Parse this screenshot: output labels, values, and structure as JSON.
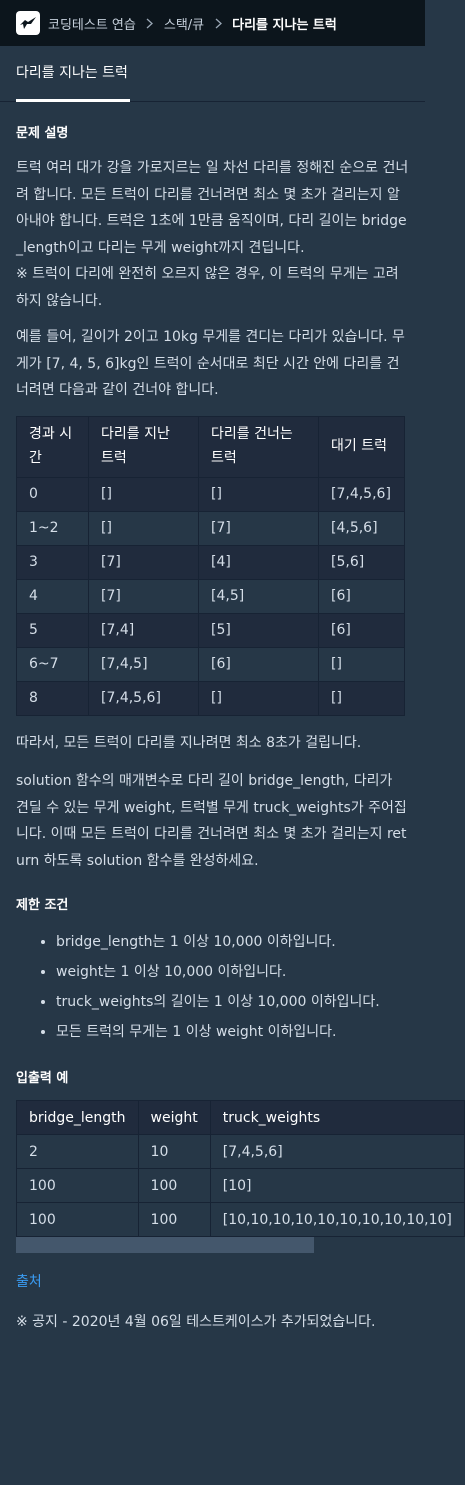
{
  "breadcrumb": {
    "items": [
      "코딩테스트 연습",
      "스택/큐"
    ],
    "current": "다리를 지나는 트럭"
  },
  "tab": {
    "label": "다리를 지나는 트럭"
  },
  "sections": {
    "description_title": "문제 설명",
    "limits_title": "제한 조건",
    "io_title": "입출력 예"
  },
  "description": {
    "p1": "트럭 여러 대가 강을 가로지르는 일 차선 다리를 정해진 순으로 건너려 합니다. 모든 트럭이 다리를 건너려면 최소 몇 초가 걸리는지 알아내야 합니다. 트럭은 1초에 1만큼 움직이며, 다리 길이는 bridge_length이고 다리는 무게 weight까지 견딥니다.",
    "p1_note": "※ 트럭이 다리에 완전히 오르지 않은 경우, 이 트럭의 무게는 고려하지 않습니다.",
    "p2": "예를 들어, 길이가 2이고 10kg 무게를 견디는 다리가 있습니다. 무게가 [7, 4, 5, 6]kg인 트럭이 순서대로 최단 시간 안에 다리를 건너려면 다음과 같이 건너야 합니다.",
    "p3": "따라서, 모든 트럭이 다리를 지나려면 최소 8초가 걸립니다.",
    "p4": "solution 함수의 매개변수로 다리 길이 bridge_length, 다리가 견딜 수 있는 무게 weight, 트럭별 무게 truck_weights가 주어집니다. 이때 모든 트럭이 다리를 건너려면 최소 몇 초가 걸리는지 return 하도록 solution 함수를 완성하세요."
  },
  "sim_table": {
    "headers": [
      "경과 시간",
      "다리를 지난 트럭",
      "다리를 건너는 트럭",
      "대기 트럭"
    ],
    "rows": [
      [
        "0",
        "[]",
        "[]",
        "[7,4,5,6]"
      ],
      [
        "1~2",
        "[]",
        "[7]",
        "[4,5,6]"
      ],
      [
        "3",
        "[7]",
        "[4]",
        "[5,6]"
      ],
      [
        "4",
        "[7]",
        "[4,5]",
        "[6]"
      ],
      [
        "5",
        "[7,4]",
        "[5]",
        "[6]"
      ],
      [
        "6~7",
        "[7,4,5]",
        "[6]",
        "[]"
      ],
      [
        "8",
        "[7,4,5,6]",
        "[]",
        "[]"
      ]
    ]
  },
  "limits": [
    "bridge_length는 1 이상 10,000 이하입니다.",
    "weight는 1 이상 10,000 이하입니다.",
    "truck_weights의 길이는 1 이상 10,000 이하입니다.",
    "모든 트럭의 무게는 1 이상 weight 이하입니다."
  ],
  "io_table": {
    "headers": [
      "bridge_length",
      "weight",
      "truck_weights"
    ],
    "rows": [
      [
        "2",
        "10",
        "[7,4,5,6]"
      ],
      [
        "100",
        "100",
        "[10]"
      ],
      [
        "100",
        "100",
        "[10,10,10,10,10,10,10,10,10,10]"
      ]
    ]
  },
  "source_link": "출처",
  "notice": "※ 공지 - 2020년 4월 06일 테스트케이스가 추가되었습니다.",
  "colors": {
    "background": "#263747",
    "topbar": "#0c151c",
    "link": "#3a9cf3"
  }
}
